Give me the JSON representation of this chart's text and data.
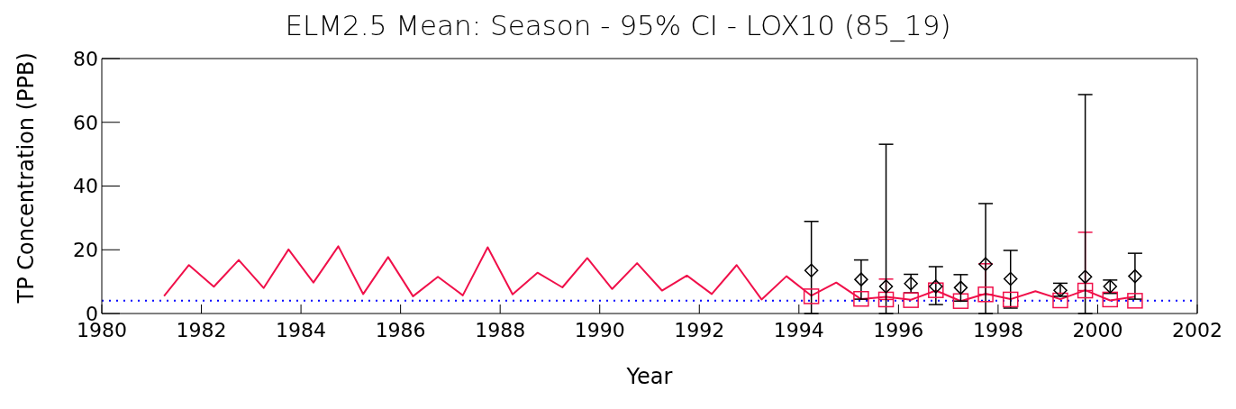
{
  "chart_data": {
    "type": "line",
    "title": "ELM2.5 Mean: Season - 95% CI - LOX10 (85_19)",
    "xlabel": "Year",
    "ylabel": "TP Concentration (PPB)",
    "xlim": [
      1980,
      2002
    ],
    "xticks": [
      1980,
      1982,
      1984,
      1986,
      1988,
      1990,
      1992,
      1994,
      1996,
      1998,
      2000,
      2002
    ],
    "ylim": [
      0,
      80
    ],
    "yticks": [
      0,
      20,
      40,
      60,
      80
    ],
    "grid": false,
    "legend": false,
    "series": [
      {
        "marker": "none",
        "color": "#f0104a",
        "x": [
          1981.25,
          1981.75,
          1982.25,
          1982.75,
          1983.25,
          1983.75,
          1984.25,
          1984.75,
          1985.25,
          1985.75,
          1986.25,
          1986.75,
          1987.25,
          1987.75,
          1988.25,
          1988.75,
          1989.25,
          1989.75,
          1990.25,
          1990.75,
          1991.25,
          1991.75,
          1992.25,
          1992.75,
          1993.25,
          1993.75,
          1994.25,
          1994.75,
          1995.25,
          1995.75,
          1996.25,
          1996.75,
          1997.25,
          1997.75,
          1998.25,
          1998.75,
          1999.25,
          1999.75,
          2000.25,
          2000.75
        ],
        "values": [
          5.5,
          15.2,
          8.4,
          16.8,
          8.0,
          20.1,
          9.7,
          21.1,
          6.1,
          17.7,
          5.4,
          11.5,
          5.7,
          20.8,
          6.0,
          12.8,
          8.2,
          17.4,
          7.7,
          15.8,
          7.2,
          11.9,
          6.1,
          15.2,
          4.4,
          11.7,
          5.6,
          9.7,
          4.5,
          5.2,
          4.3,
          7.2,
          3.9,
          6.2,
          4.5,
          7.0,
          4.5,
          7.3,
          4.1,
          5.3
        ]
      },
      {
        "type": "scatter",
        "marker": "square",
        "color": "#f0104a",
        "x": [
          1994.25,
          1995.25,
          1995.75,
          1996.25,
          1996.75,
          1997.25,
          1997.75,
          1998.25,
          1999.25,
          1999.75,
          2000.25,
          2000.75
        ],
        "values": [
          5.4,
          4.6,
          4.4,
          4.2,
          7.3,
          3.9,
          6.0,
          4.4,
          4.1,
          7.2,
          4.4,
          4.0
        ],
        "errors": [
          null,
          null,
          [
            4.4,
            10.8
          ],
          null,
          null,
          null,
          [
            6.0,
            15.6
          ],
          null,
          null,
          [
            7.2,
            25.5
          ],
          null,
          null
        ]
      },
      {
        "type": "scatter",
        "marker": "diamond",
        "color": "#000000",
        "x": [
          1994.25,
          1995.25,
          1995.75,
          1996.25,
          1996.75,
          1997.25,
          1997.75,
          1998.25,
          1999.25,
          1999.75,
          2000.25,
          2000.75
        ],
        "values": [
          13.5,
          10.7,
          8.5,
          9.4,
          8.5,
          8.1,
          15.5,
          10.9,
          7.3,
          11.5,
          8.5,
          11.7
        ],
        "errors": [
          [
            0,
            28.9
          ],
          [
            4.5,
            16.8
          ],
          [
            0,
            53.1
          ],
          [
            6.5,
            12.3
          ],
          [
            2.8,
            14.7
          ],
          [
            3.9,
            12.2
          ],
          [
            0,
            34.5
          ],
          [
            1.7,
            19.8
          ],
          [
            5.4,
            9.5
          ],
          [
            0,
            68.7
          ],
          [
            6.3,
            10.5
          ],
          [
            4.5,
            18.9
          ]
        ]
      }
    ],
    "ref_lines": [
      {
        "axis": "y",
        "value": 4,
        "color": "#0000ff",
        "line_style": "dotted"
      }
    ]
  }
}
